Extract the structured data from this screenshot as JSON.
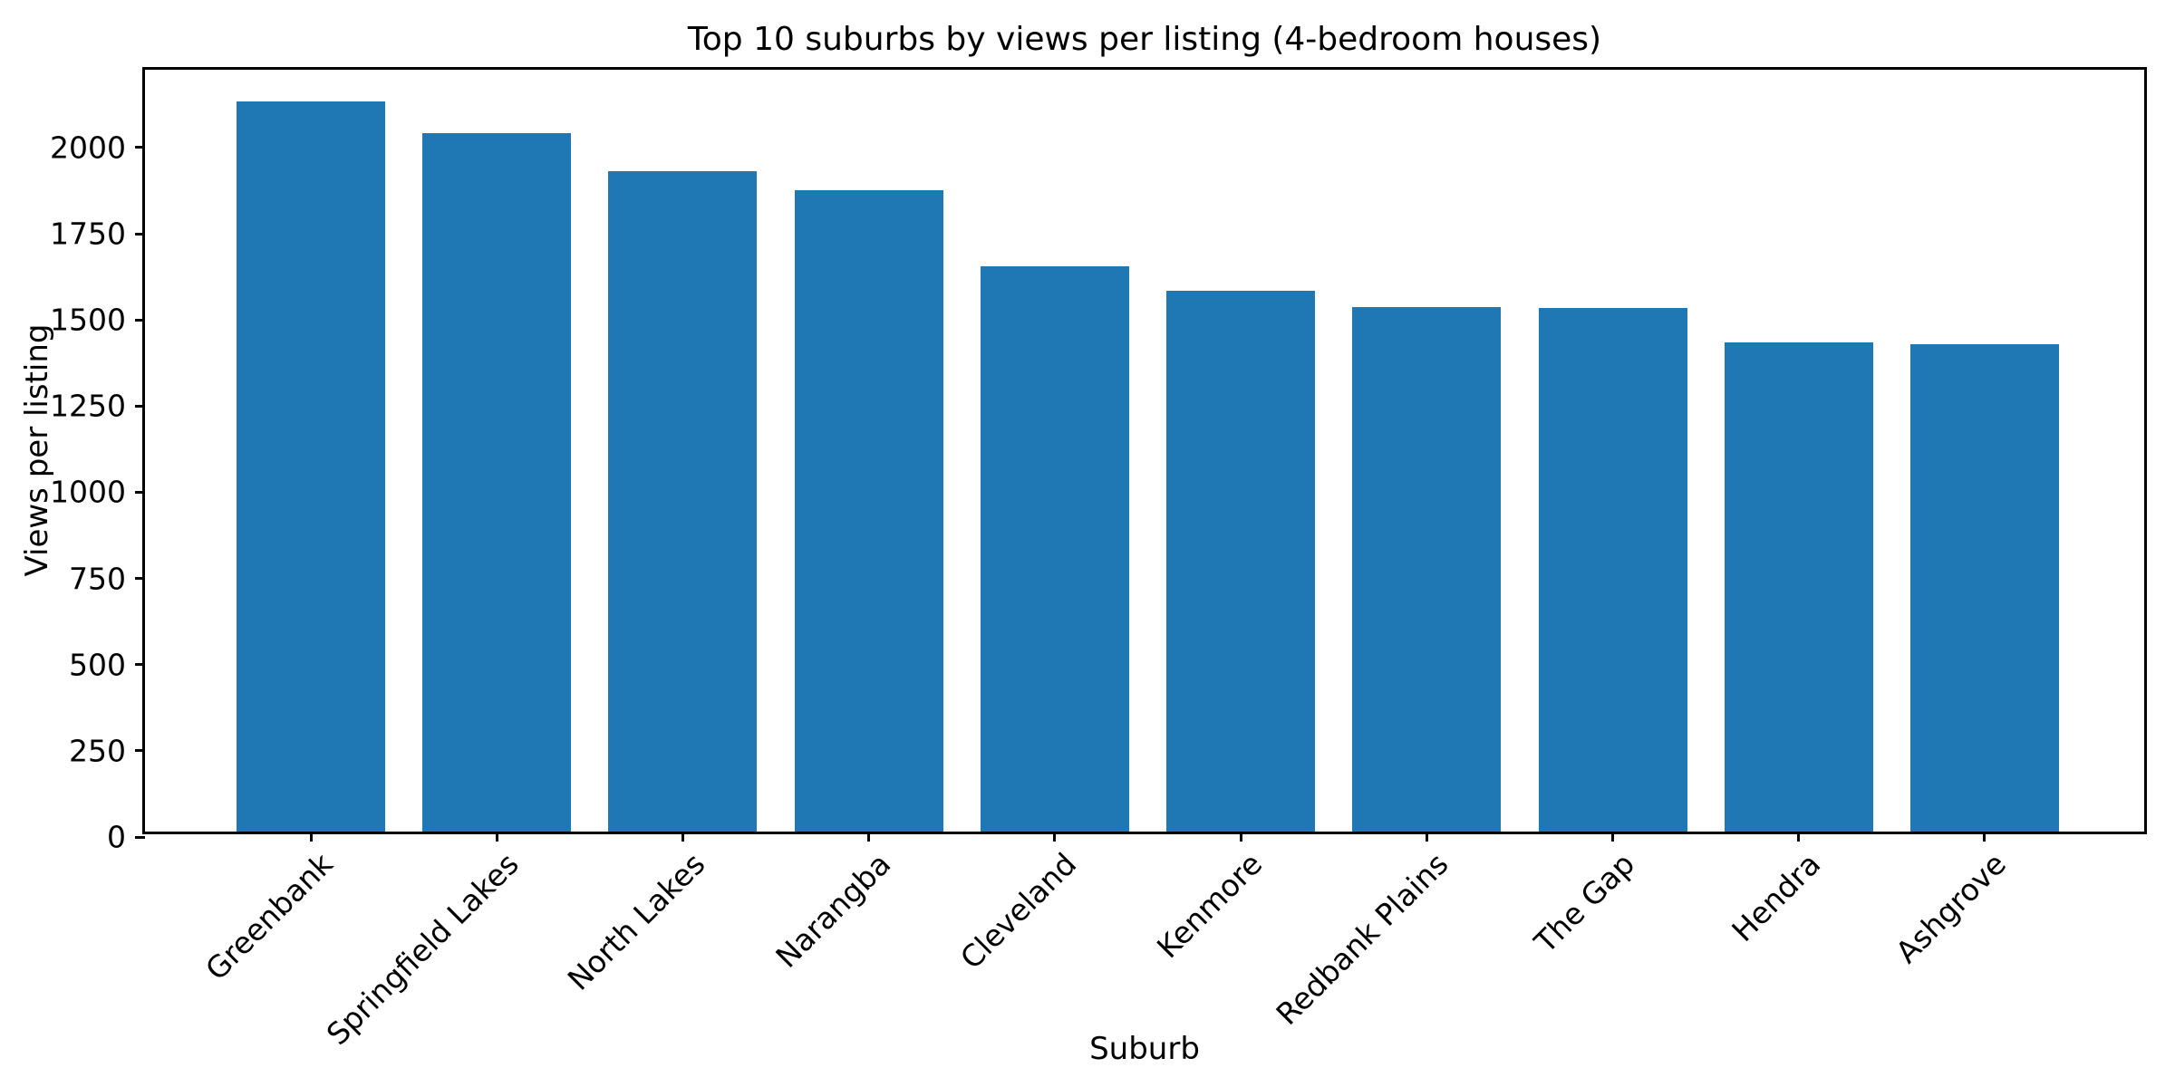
{
  "chart_data": {
    "type": "bar",
    "title": "Top 10 suburbs by views per listing (4-bedroom houses)",
    "xlabel": "Suburb",
    "ylabel": "Views per listing",
    "categories": [
      "Greenbank",
      "Springfield Lakes",
      "North Lakes",
      "Narangba",
      "Cleveland",
      "Kenmore",
      "Redbank Plains",
      "The Gap",
      "Hendra",
      "Ashgrove"
    ],
    "values": [
      2118,
      2026,
      1917,
      1860,
      1641,
      1568,
      1523,
      1520,
      1418,
      1413
    ],
    "yticks": [
      0,
      250,
      500,
      750,
      1000,
      1250,
      1500,
      1750,
      2000
    ],
    "ylim": [
      0,
      2226
    ],
    "bar_color": "#1f77b4",
    "axis_color": "#000000",
    "background_color": "#ffffff",
    "grid": false,
    "legend": "none",
    "x_tick_label_rotation": 45
  }
}
